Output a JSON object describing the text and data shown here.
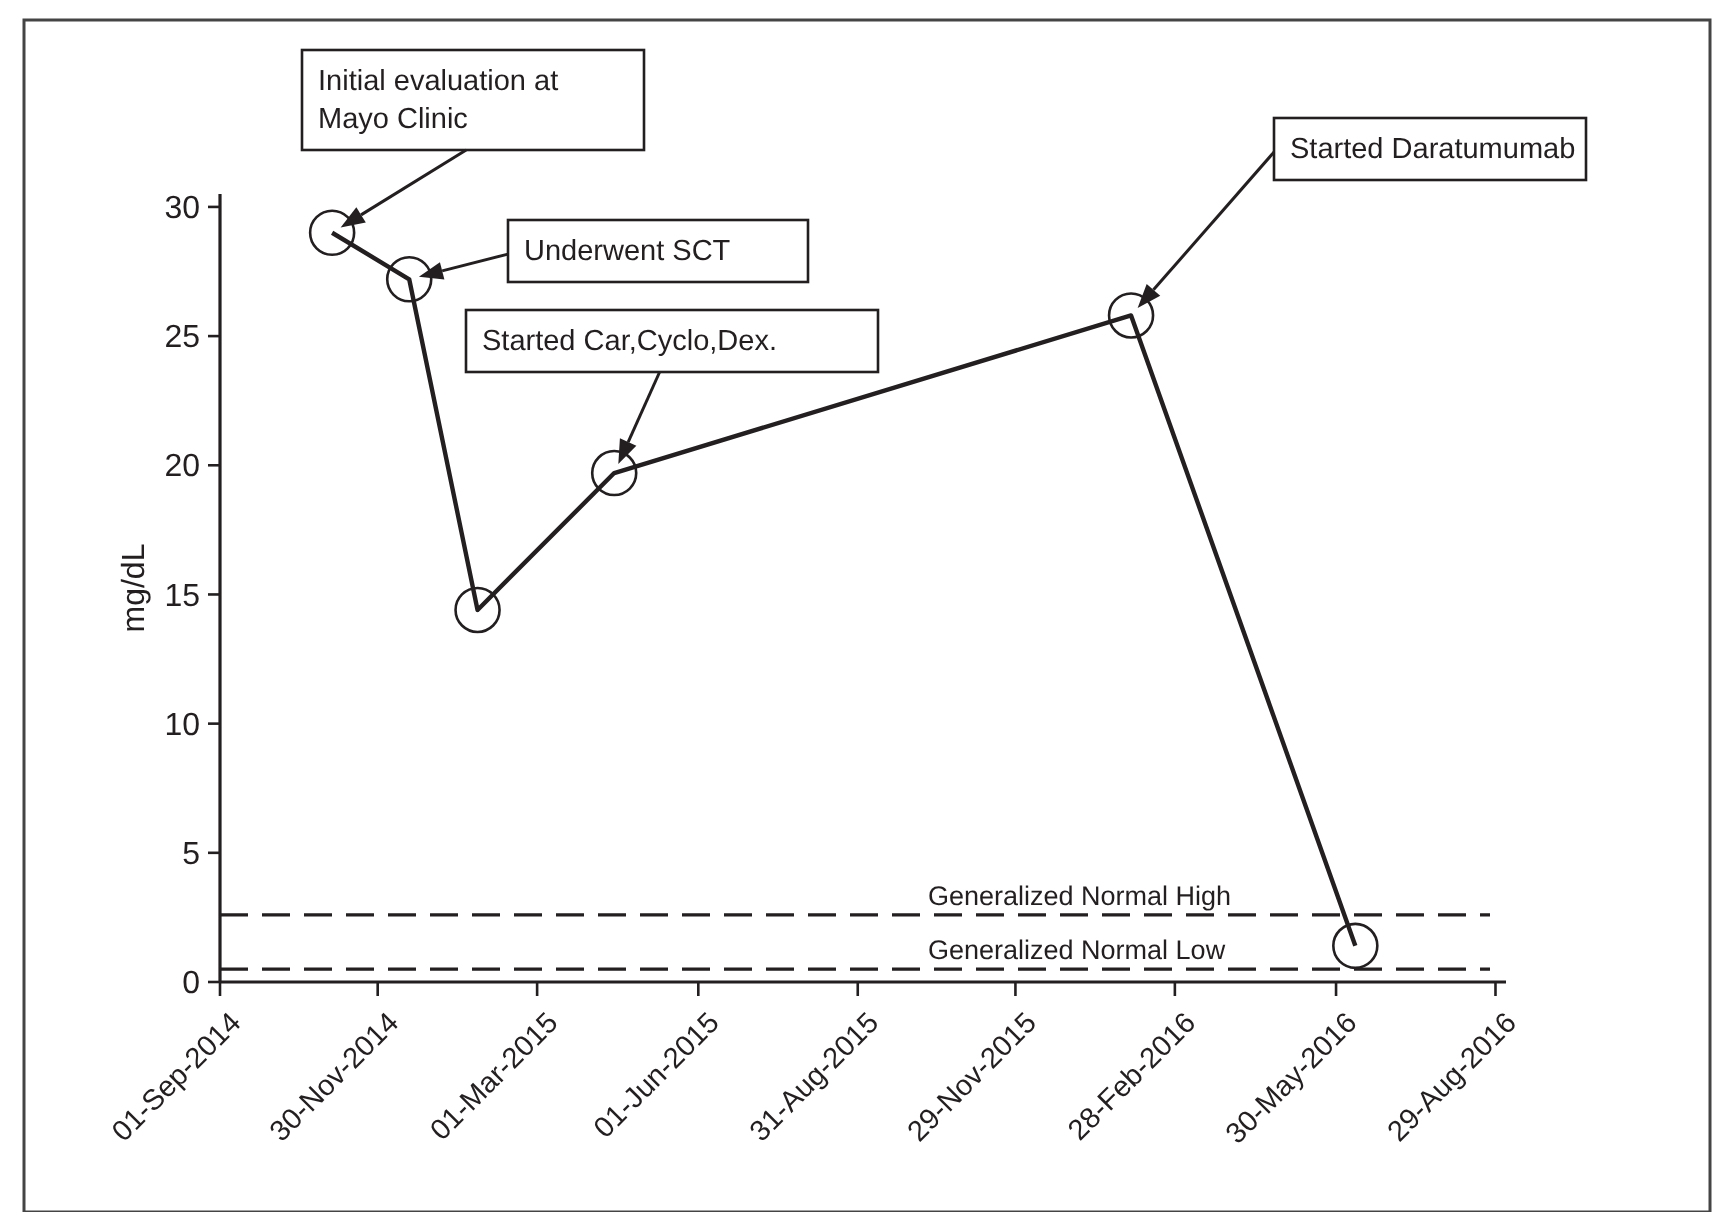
{
  "chart_data": {
    "type": "line",
    "ylabel": "mg/dL",
    "x": [
      "2014-11-04",
      "2014-12-18",
      "2015-01-26",
      "2015-04-14",
      "2016-02-03",
      "2016-06-10"
    ],
    "series": [
      {
        "color": "#231f20",
        "values": [
          29.0,
          27.2,
          14.4,
          19.7,
          25.8,
          1.4
        ]
      }
    ],
    "marker": "circle",
    "line_style": "solid",
    "grid": false,
    "xlim": [
      "2014-09-01",
      "2016-09-04"
    ],
    "xticks": [
      {
        "value": "2014-09-01",
        "label": "01-Sep-2014"
      },
      {
        "value": "2014-11-30",
        "label": "30-Nov-2014"
      },
      {
        "value": "2015-03-01",
        "label": "01-Mar-2015"
      },
      {
        "value": "2015-06-01",
        "label": "01-Jun-2015"
      },
      {
        "value": "2015-08-31",
        "label": "31-Aug-2015"
      },
      {
        "value": "2015-11-29",
        "label": "29-Nov-2015"
      },
      {
        "value": "2016-02-28",
        "label": "28-Feb-2016"
      },
      {
        "value": "2016-05-30",
        "label": "30-May-2016"
      },
      {
        "value": "2016-08-29",
        "label": "29-Aug-2016"
      }
    ],
    "ylim": [
      0,
      30.5
    ],
    "yticks": [
      0,
      5,
      10,
      15,
      20,
      25,
      30
    ],
    "ref_lines": [
      {
        "axis": "y",
        "value": 2.6,
        "label": "Generalized Normal High",
        "line_style": "dashed",
        "color": "#231f20"
      },
      {
        "axis": "y",
        "value": 0.5,
        "label": "Generalized Normal Low",
        "line_style": "dashed",
        "color": "#231f20"
      }
    ],
    "annotations": [
      "Initial evaluation at Mayo Clinic",
      "Underwent SCT",
      "Started Car,Cyclo,Dex.",
      "Started Daratumumab"
    ]
  }
}
